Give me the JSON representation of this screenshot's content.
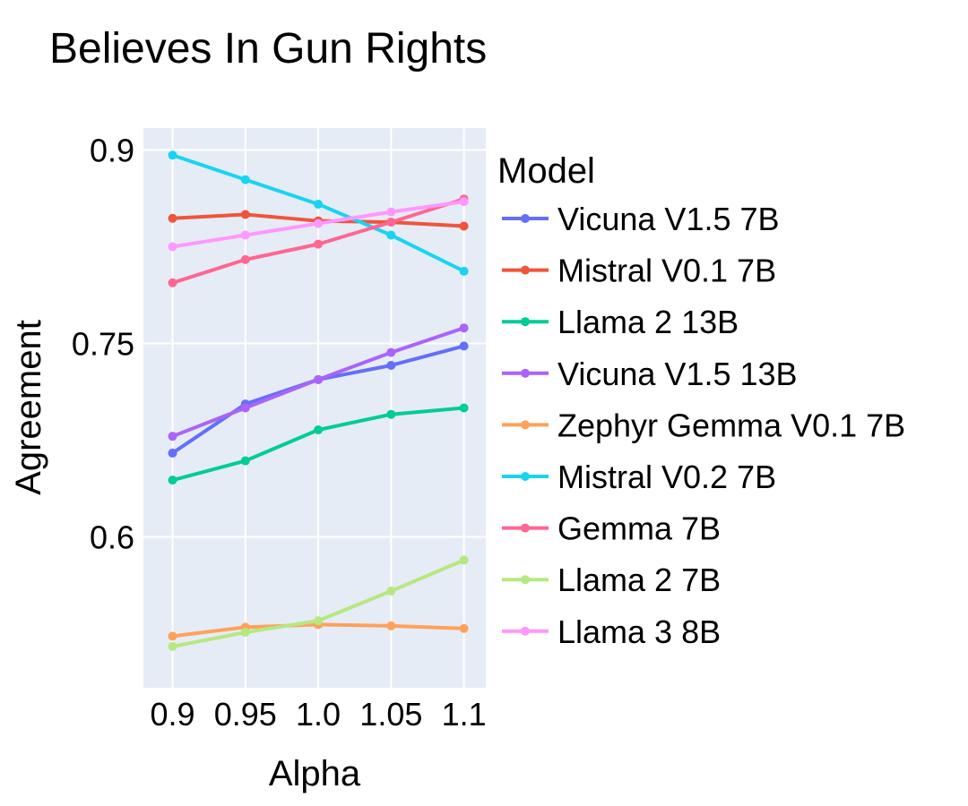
{
  "chart_data": {
    "type": "line",
    "title": "Believes In Gun Rights",
    "xlabel": "Alpha",
    "ylabel": "Agreement",
    "x": [
      0.9,
      0.95,
      1.0,
      1.05,
      1.1
    ],
    "xticks": [
      "0.9",
      "0.95",
      "1.0",
      "1.05",
      "1.1"
    ],
    "yticks": [
      {
        "value": 0.6,
        "label": "0.6"
      },
      {
        "value": 0.75,
        "label": "0.75"
      },
      {
        "value": 0.9,
        "label": "0.9"
      }
    ],
    "xlim": [
      0.88,
      1.115
    ],
    "ylim": [
      0.483,
      0.917
    ],
    "grid": true,
    "legend_title": "Model",
    "legend_position": "right",
    "series": [
      {
        "name": "Vicuna V1.5 7B",
        "color": "#636efa",
        "values": [
          0.665,
          0.703,
          0.722,
          0.733,
          0.748
        ]
      },
      {
        "name": "Mistral V0.1 7B",
        "color": "#ef553b",
        "values": [
          0.847,
          0.85,
          0.845,
          0.844,
          0.841
        ]
      },
      {
        "name": "Llama 2 13B",
        "color": "#00cc96",
        "values": [
          0.644,
          0.659,
          0.683,
          0.695,
          0.7
        ]
      },
      {
        "name": "Vicuna V1.5 13B",
        "color": "#ab63fa",
        "values": [
          0.678,
          0.7,
          0.722,
          0.743,
          0.762
        ]
      },
      {
        "name": "Zephyr Gemma V0.1 7B",
        "color": "#ffa15a",
        "values": [
          0.523,
          0.53,
          0.532,
          0.531,
          0.529
        ]
      },
      {
        "name": "Mistral V0.2 7B",
        "color": "#19d3f3",
        "values": [
          0.896,
          0.877,
          0.858,
          0.834,
          0.806
        ]
      },
      {
        "name": "Gemma 7B",
        "color": "#ff6692",
        "values": [
          0.797,
          0.815,
          0.827,
          0.844,
          0.862
        ]
      },
      {
        "name": "Llama 2 7B",
        "color": "#b6e880",
        "values": [
          0.515,
          0.526,
          0.535,
          0.558,
          0.582
        ]
      },
      {
        "name": "Llama 3 8B",
        "color": "#ff97ff",
        "values": [
          0.825,
          0.834,
          0.843,
          0.852,
          0.86
        ]
      }
    ]
  },
  "colors": {
    "plot_background": "#e5ecf6",
    "gridline": "#ffffff",
    "text": "#000000"
  }
}
